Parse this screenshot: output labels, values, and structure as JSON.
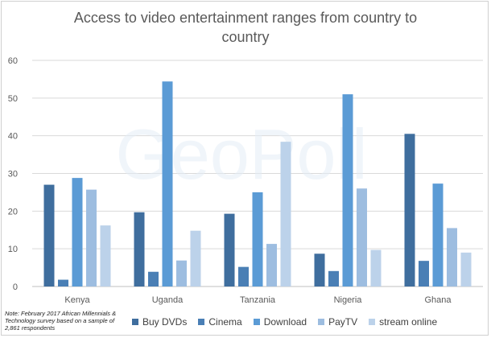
{
  "chart_data": {
    "type": "bar",
    "title_lines": [
      "Access to video entertainment ranges from country to",
      "country"
    ],
    "categories": [
      "Kenya",
      "Uganda",
      "Tanzania",
      "Nigeria",
      "Ghana"
    ],
    "series": [
      {
        "name": "Buy DVDs",
        "color": "#3f6e9e",
        "values": [
          27,
          19.7,
          19.3,
          8.7,
          40.5
        ]
      },
      {
        "name": "Cinema",
        "color": "#4a7fb5",
        "values": [
          1.8,
          3.9,
          5.2,
          4.1,
          6.8
        ]
      },
      {
        "name": "Download",
        "color": "#5b9bd5",
        "values": [
          28.8,
          54.4,
          25,
          51,
          27.3
        ]
      },
      {
        "name": "PayTV",
        "color": "#9dbde0",
        "values": [
          25.7,
          6.9,
          11.3,
          26,
          15.5
        ]
      },
      {
        "name": "stream online",
        "color": "#bcd2ea",
        "values": [
          16.2,
          14.8,
          38.4,
          9.7,
          9
        ]
      }
    ],
    "yticks": [
      "0",
      "10",
      "20",
      "30",
      "40",
      "50",
      "60"
    ],
    "ylim": [
      0,
      60
    ],
    "grid": true,
    "legend_position": "bottom",
    "watermark": "GeoPoll",
    "note": "Note: February 2017 African Millennials & Technology survey based on a sample of 2,861 respondents"
  }
}
